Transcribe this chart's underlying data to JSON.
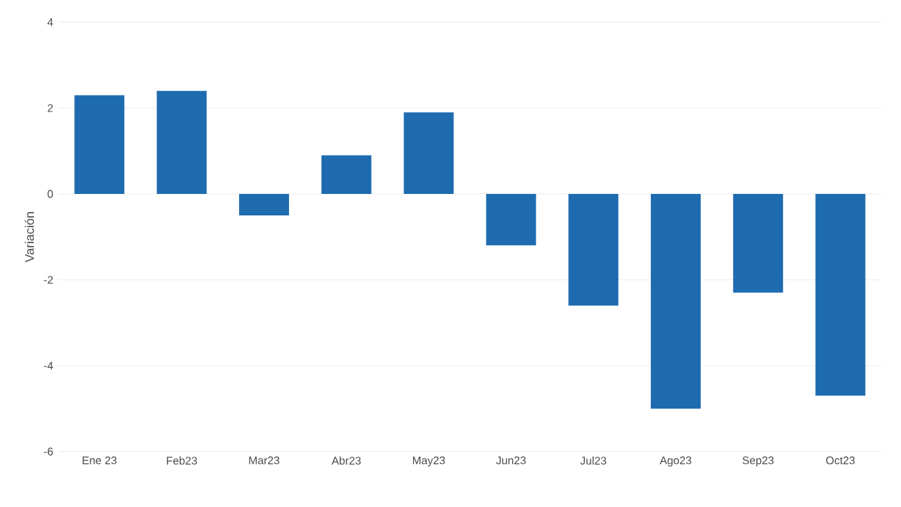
{
  "chart_data": {
    "type": "bar",
    "ylabel": "Variación",
    "categories": [
      "Ene 23",
      "Feb23",
      "Mar23",
      "Abr23",
      "May23",
      "Jun23",
      "Jul23",
      "Ago23",
      "Sep23",
      "Oct23"
    ],
    "values": [
      2.3,
      2.4,
      -0.5,
      0.9,
      1.9,
      -1.2,
      -2.6,
      -5.0,
      -2.3,
      -4.7
    ],
    "color": "#1f6bb0",
    "ylim": [
      -6,
      4
    ],
    "yticks": [
      -6,
      -4,
      -2,
      0,
      2,
      4
    ],
    "grid": "y"
  }
}
